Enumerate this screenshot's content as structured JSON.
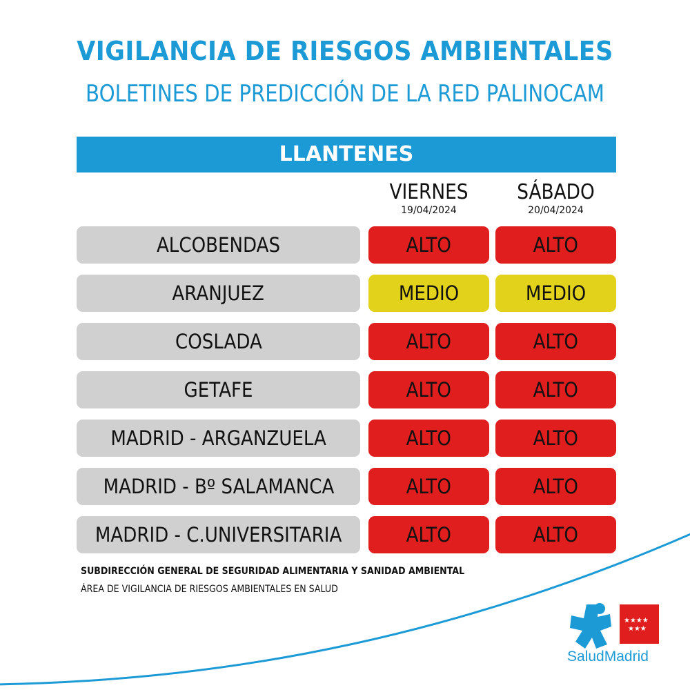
{
  "header": {
    "title": "VIGILANCIA DE RIESGOS AMBIENTALES",
    "subtitle": "BOLETINES DE PREDICCIÓN DE LA RED PALINOCAM"
  },
  "banner": {
    "label": "LLANTENES"
  },
  "days": [
    {
      "name": "VIERNES",
      "date": "19/04/2024"
    },
    {
      "name": "SÁBADO",
      "date": "20/04/2024"
    }
  ],
  "levels": {
    "ALTO": "#e01e1e",
    "MEDIO": "#e2d21b"
  },
  "rows": [
    {
      "location": "ALCOBENDAS",
      "day1": "ALTO",
      "day2": "ALTO"
    },
    {
      "location": "ARANJUEZ",
      "day1": "MEDIO",
      "day2": "MEDIO"
    },
    {
      "location": "COSLADA",
      "day1": "ALTO",
      "day2": "ALTO"
    },
    {
      "location": "GETAFE",
      "day1": "ALTO",
      "day2": "ALTO"
    },
    {
      "location": "MADRID - ARGANZUELA",
      "day1": "ALTO",
      "day2": "ALTO"
    },
    {
      "location": "MADRID - Bº SALAMANCA",
      "day1": "ALTO",
      "day2": "ALTO"
    },
    {
      "location": "MADRID - C.UNIVERSITARIA",
      "day1": "ALTO",
      "day2": "ALTO"
    }
  ],
  "footer": {
    "line1": "SUBDIRECCIÓN GENERAL DE SEGURIDAD ALIMENTARIA Y SANIDAD AMBIENTAL",
    "line2": "ÁREA DE VIGILANCIA DE RIESGOS AMBIENTALES EN SALUD"
  },
  "logo": {
    "text_part1": "Salud",
    "text_part2": "Madrid",
    "accent_color": "#1c9ad6",
    "flag_color": "#e01e1e"
  }
}
